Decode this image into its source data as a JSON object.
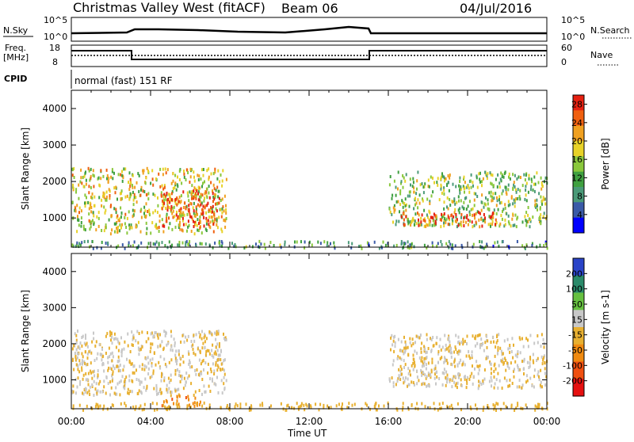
{
  "header": {
    "station": "Christmas Valley West (fitACF)",
    "beam": "Beam 06",
    "date": "04/Jul/2016"
  },
  "noise_panel": {
    "left_label": "N.Sky",
    "left_ticks": [
      "10^5",
      "10^0"
    ],
    "right_ticks": [
      "10^5",
      "10^0"
    ],
    "right_label": "N.Search"
  },
  "freq_panel": {
    "label_line1": "Freq.",
    "label_line2": "[MHz]",
    "left_ticks": [
      "18",
      "8"
    ],
    "right_ticks": [
      "60",
      "0"
    ],
    "right_label": "Nave"
  },
  "cpid": {
    "label": "CPID",
    "mode": "normal (fast) 151 RF"
  },
  "x_axis": {
    "title": "Time UT",
    "ticks": [
      "00:00",
      "04:00",
      "08:00",
      "12:00",
      "16:00",
      "20:00",
      "00:00"
    ]
  },
  "colors": {
    "power": [
      "#0000ff",
      "#3a5aa8",
      "#4a9a78",
      "#3fa040",
      "#8ac83c",
      "#e8d228",
      "#f0a020",
      "#f06010",
      "#e62010"
    ],
    "velocity": [
      "#2a44c8",
      "#2a8a6a",
      "#66c040",
      "#c8c8c8",
      "#e8b030",
      "#f08a10",
      "#f05010",
      "#e61010"
    ]
  },
  "chart_data": [
    {
      "type": "heatmap",
      "name": "power",
      "ylabel": "Slant Range [km]",
      "yticks": [
        "1000",
        "2000",
        "3000",
        "4000"
      ],
      "ylim": [
        200,
        4500
      ],
      "colorbar": {
        "label": "Power [dB]",
        "ticks": [
          "4",
          "8",
          "12",
          "16",
          "20",
          "24",
          "28"
        ],
        "range": [
          0,
          30
        ]
      },
      "echo_regions_hours_km": [
        {
          "t": [
            0.0,
            7.8
          ],
          "r": [
            600,
            2400
          ],
          "value": 18
        },
        {
          "t": [
            4.5,
            7.5
          ],
          "r": [
            800,
            1800
          ],
          "value": 26
        },
        {
          "t": [
            16.0,
            24.0
          ],
          "r": [
            800,
            2300
          ],
          "value": 14
        },
        {
          "t": [
            16.5,
            21.5
          ],
          "r": [
            800,
            1200
          ],
          "value": 26
        },
        {
          "t": [
            0.0,
            24.0
          ],
          "r": [
            200,
            400
          ],
          "value": 10
        }
      ]
    },
    {
      "type": "heatmap",
      "name": "velocity",
      "ylabel": "Slant Range [km]",
      "yticks": [
        "1000",
        "2000",
        "3000",
        "4000"
      ],
      "ylim": [
        200,
        4500
      ],
      "colorbar": {
        "label": "Velocity [m s-1]",
        "ticks": [
          "200",
          "100",
          "50",
          "15",
          "-15",
          "-50",
          "-100",
          "-200"
        ],
        "range": [
          -250,
          250
        ]
      },
      "echo_regions_hours_km": [
        {
          "t": [
            0.0,
            7.8
          ],
          "r": [
            600,
            2400
          ],
          "value": 0
        },
        {
          "t": [
            4.5,
            6.5
          ],
          "r": [
            300,
            600
          ],
          "value": -100
        },
        {
          "t": [
            16.0,
            24.0
          ],
          "r": [
            800,
            2300
          ],
          "value": 0
        },
        {
          "t": [
            0.0,
            24.0
          ],
          "r": [
            200,
            400
          ],
          "value": -30
        }
      ]
    }
  ]
}
